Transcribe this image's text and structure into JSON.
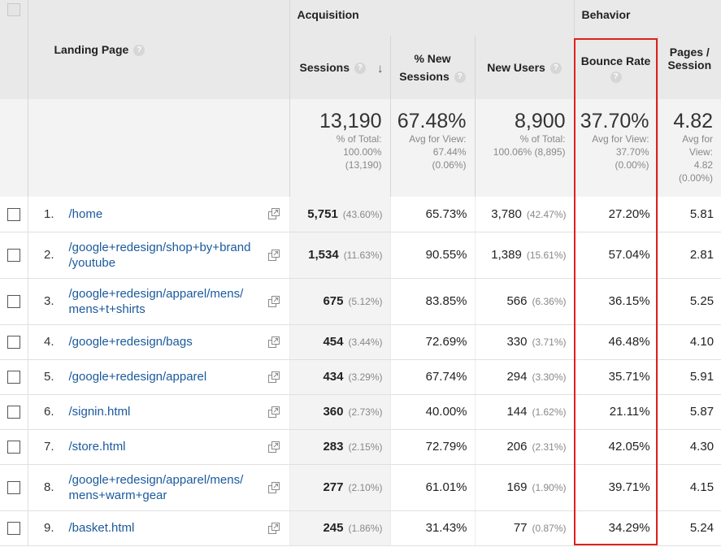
{
  "headers": {
    "acquisition": "Acquisition",
    "behavior": "Behavior",
    "landing_page": "Landing Page",
    "sessions": "Sessions",
    "pct_new_sessions_1": "% New",
    "pct_new_sessions_2": "Sessions",
    "new_users": "New Users",
    "bounce_rate": "Bounce Rate",
    "pages_session_1": "Pages /",
    "pages_session_2": "Session",
    "help": "?",
    "sort_arrow": "↓"
  },
  "totals": {
    "sessions": {
      "value": "13,190",
      "l1": "% of Total:",
      "l2": "100.00%",
      "l3": "(13,190)"
    },
    "pct_new_sessions": {
      "value": "67.48%",
      "l1": "Avg for View:",
      "l2": "67.44%",
      "l3": "(0.06%)"
    },
    "new_users": {
      "value": "8,900",
      "l1": "% of Total:",
      "l2": "100.06% (8,895)",
      "l3": ""
    },
    "bounce_rate": {
      "value": "37.70%",
      "l1": "Avg for View:",
      "l2": "37.70%",
      "l3": "(0.00%)"
    },
    "pages_session": {
      "value": "4.82",
      "l1": "Avg for",
      "l2": "View:",
      "l3": "4.82",
      "l4": "(0.00%)"
    }
  },
  "rows": [
    {
      "num": "1.",
      "line1": "/home",
      "line2": "",
      "sessions": "5,751",
      "sessions_pct": "(43.60%)",
      "pct_new": "65.73%",
      "new_users": "3,780",
      "new_users_pct": "(42.47%)",
      "bounce": "27.20%",
      "pages": "5.81"
    },
    {
      "num": "2.",
      "line1": "/google+redesign/shop+by+brand",
      "line2": "/youtube",
      "sessions": "1,534",
      "sessions_pct": "(11.63%)",
      "pct_new": "90.55%",
      "new_users": "1,389",
      "new_users_pct": "(15.61%)",
      "bounce": "57.04%",
      "pages": "2.81"
    },
    {
      "num": "3.",
      "line1": "/google+redesign/apparel/mens/",
      "line2": "mens+t+shirts",
      "sessions": "675",
      "sessions_pct": "(5.12%)",
      "pct_new": "83.85%",
      "new_users": "566",
      "new_users_pct": "(6.36%)",
      "bounce": "36.15%",
      "pages": "5.25"
    },
    {
      "num": "4.",
      "line1": "/google+redesign/bags",
      "line2": "",
      "sessions": "454",
      "sessions_pct": "(3.44%)",
      "pct_new": "72.69%",
      "new_users": "330",
      "new_users_pct": "(3.71%)",
      "bounce": "46.48%",
      "pages": "4.10"
    },
    {
      "num": "5.",
      "line1": "/google+redesign/apparel",
      "line2": "",
      "sessions": "434",
      "sessions_pct": "(3.29%)",
      "pct_new": "67.74%",
      "new_users": "294",
      "new_users_pct": "(3.30%)",
      "bounce": "35.71%",
      "pages": "5.91"
    },
    {
      "num": "6.",
      "line1": "/signin.html",
      "line2": "",
      "sessions": "360",
      "sessions_pct": "(2.73%)",
      "pct_new": "40.00%",
      "new_users": "144",
      "new_users_pct": "(1.62%)",
      "bounce": "21.11%",
      "pages": "5.87"
    },
    {
      "num": "7.",
      "line1": "/store.html",
      "line2": "",
      "sessions": "283",
      "sessions_pct": "(2.15%)",
      "pct_new": "72.79%",
      "new_users": "206",
      "new_users_pct": "(2.31%)",
      "bounce": "42.05%",
      "pages": "4.30"
    },
    {
      "num": "8.",
      "line1": "/google+redesign/apparel/mens/",
      "line2": "mens+warm+gear",
      "sessions": "277",
      "sessions_pct": "(2.10%)",
      "pct_new": "61.01%",
      "new_users": "169",
      "new_users_pct": "(1.90%)",
      "bounce": "39.71%",
      "pages": "4.15"
    },
    {
      "num": "9.",
      "line1": "/basket.html",
      "line2": "",
      "sessions": "245",
      "sessions_pct": "(1.86%)",
      "pct_new": "31.43%",
      "new_users": "77",
      "new_users_pct": "(0.87%)",
      "bounce": "34.29%",
      "pages": "5.24"
    }
  ],
  "colors": {
    "link": "#1a5a9c",
    "highlight": "#e0201e",
    "header_bg": "#e9e9e9"
  },
  "icons": {
    "row_action": "open-in-new-window-icon",
    "help": "help-circle-icon",
    "sort": "sort-descending-arrow-icon"
  }
}
